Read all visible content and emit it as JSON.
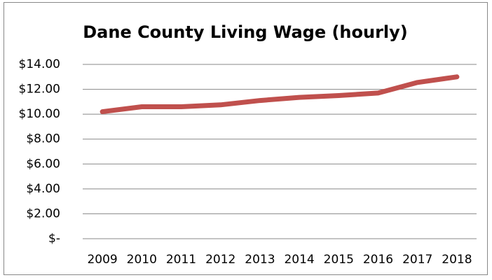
{
  "chart_data": {
    "type": "line",
    "title": "Dane County Living Wage (hourly)",
    "categories": [
      "2009",
      "2010",
      "2011",
      "2012",
      "2013",
      "2014",
      "2015",
      "2016",
      "2017",
      "2018"
    ],
    "series": [
      {
        "name": "Living Wage",
        "color": "#c0504d",
        "values": [
          10.2,
          10.6,
          10.6,
          10.75,
          11.1,
          11.35,
          11.5,
          11.7,
          12.55,
          13.0
        ]
      }
    ],
    "ylim": [
      0,
      14
    ],
    "yticks": [
      {
        "value": 0,
        "label": "$-"
      },
      {
        "value": 2,
        "label": "$2.00"
      },
      {
        "value": 4,
        "label": "$4.00"
      },
      {
        "value": 6,
        "label": "$6.00"
      },
      {
        "value": 8,
        "label": "$8.00"
      },
      {
        "value": 10,
        "label": "$10.00"
      },
      {
        "value": 12,
        "label": "$12.00"
      },
      {
        "value": 14,
        "label": "$14.00"
      }
    ],
    "grid": true
  }
}
